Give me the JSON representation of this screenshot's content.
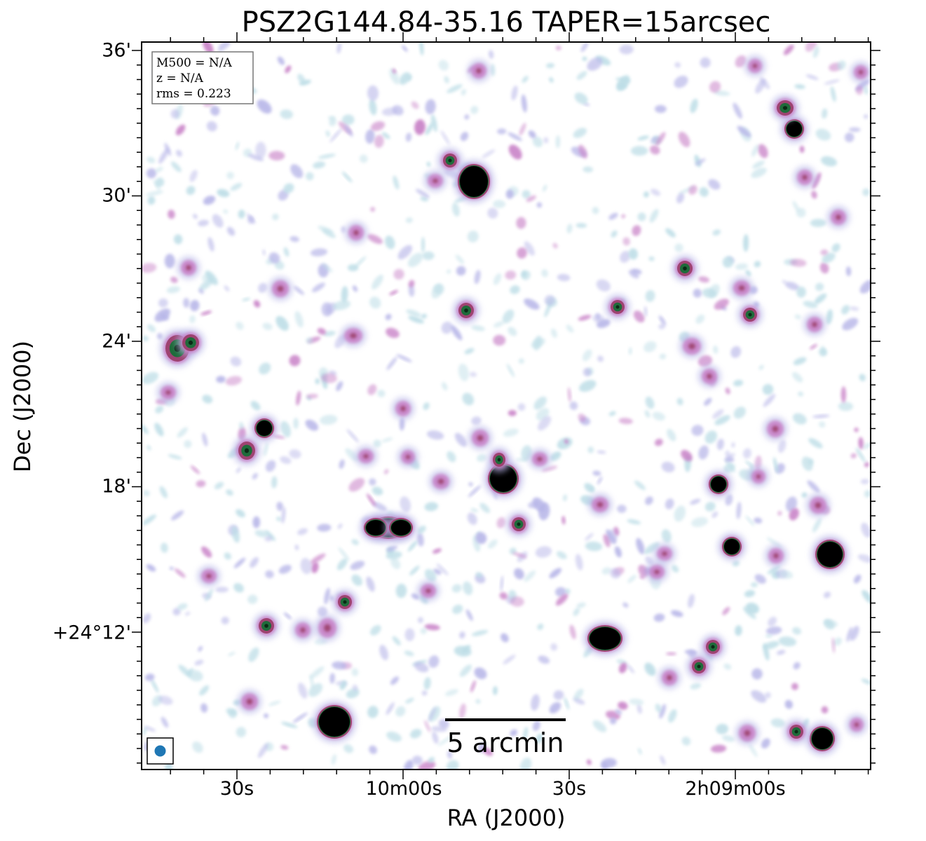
{
  "figure": {
    "title": "PSZ2G144.84-35.16 TAPER=15arcsec",
    "xlabel": "RA (J2000)",
    "ylabel": "Dec (J2000)",
    "y_ticks": [
      "36'",
      "30'",
      "24'",
      "18'",
      "+24°12'"
    ],
    "x_ticks": [
      "30s",
      "10m00s",
      "30s",
      "2h09m00s"
    ]
  },
  "info_box": {
    "line1": "M500 = N/A",
    "line2": "z = N/A",
    "line3": "rms = 0.223"
  },
  "scalebar": {
    "label": "5 arcmin"
  },
  "beam": {
    "color": "#1f77b4"
  },
  "colors": {
    "noise_light": "#bcdde6",
    "noise_mid": "#b7b6e8",
    "noise_pink": "#c77fc6",
    "source_ring": "#9b3f6b",
    "source_green": "#1e6b3a",
    "source_core": "#000000"
  }
}
